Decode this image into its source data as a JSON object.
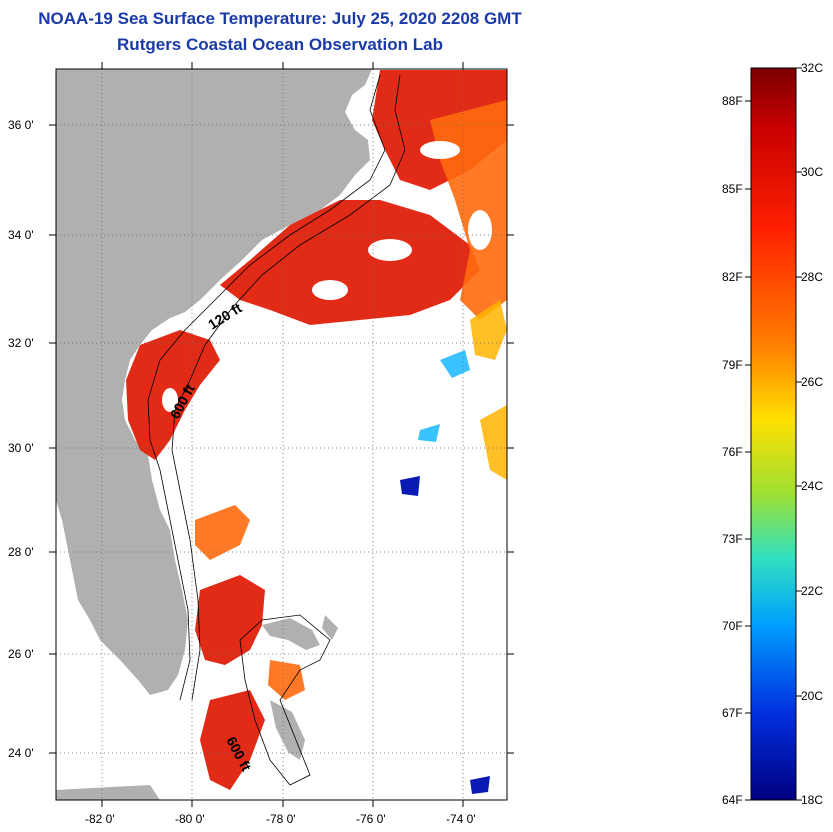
{
  "title": "NOAA-19 Sea Surface Temperature:  July 25, 2020 2208 GMT",
  "subtitle": "Rutgers Coastal Ocean Observation Lab",
  "map": {
    "lat_labels": [
      "36 0'",
      "34 0'",
      "32 0'",
      "30 0'",
      "28 0'",
      "26 0'",
      "24 0'"
    ],
    "lon_labels": [
      "-82 0'",
      "-80 0'",
      "-78 0'",
      "-76 0'",
      "-74 0'"
    ],
    "contours": [
      "120 ft",
      "600 ft",
      "600 ft"
    ],
    "land_color": "#b0b0b0",
    "colors": {
      "hot": "#e0200a",
      "warm": "#ff6a10",
      "mid": "#ffb400",
      "cool": "#3ac2ff",
      "cold": "#0a1ab4"
    }
  },
  "colorbar": {
    "celsius": [
      "32C",
      "30C",
      "28C",
      "26C",
      "24C",
      "22C",
      "20C",
      "18C"
    ],
    "fahrenheit": [
      "88F",
      "85F",
      "82F",
      "79F",
      "76F",
      "73F",
      "70F",
      "67F",
      "64F"
    ],
    "range_c": [
      18,
      32
    ]
  }
}
